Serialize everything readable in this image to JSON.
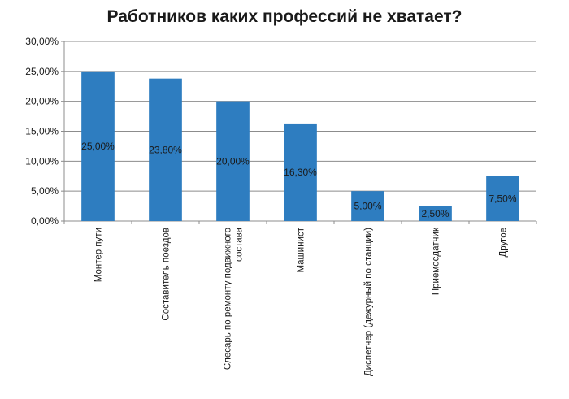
{
  "chart_data": {
    "type": "bar",
    "title": "Работников каких профессий не хватает?",
    "xlabel": "",
    "ylabel": "",
    "ylim": [
      0,
      30
    ],
    "yticks": [
      "0,00%",
      "5,00%",
      "10,00%",
      "15,00%",
      "20,00%",
      "25,00%",
      "30,00%"
    ],
    "grid": true,
    "bar_color": "#2e7dc0",
    "categories": [
      [
        "Монтер пути"
      ],
      [
        "Составитель поездов"
      ],
      [
        "Слесарь по ремонту подвижного",
        "состава"
      ],
      [
        "Машинист"
      ],
      [
        "Диспетчер (дежурный по станции)"
      ],
      [
        "Приемосдатчик"
      ],
      [
        "Другое"
      ]
    ],
    "values": [
      25.0,
      23.8,
      20.0,
      16.3,
      5.0,
      2.5,
      7.5
    ],
    "data_labels": [
      "25,00%",
      "23,80%",
      "20,00%",
      "16,30%",
      "5,00%",
      "2,50%",
      "7,50%"
    ]
  }
}
